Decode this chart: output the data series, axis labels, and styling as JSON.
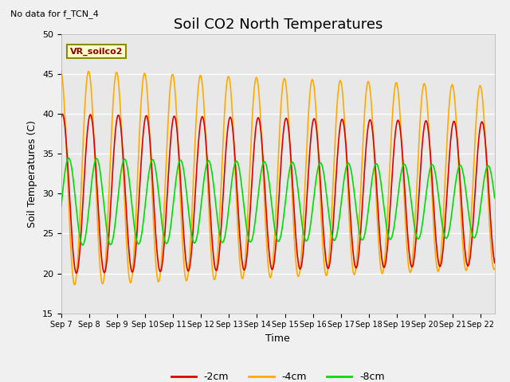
{
  "title": "Soil CO2 North Temperatures",
  "no_data_text": "No data for f_TCN_4",
  "vr_label": "VR_soilco2",
  "xlabel": "Time",
  "ylabel": "Soil Temperatures (C)",
  "ylim": [
    15,
    50
  ],
  "xlim": [
    0,
    15.5
  ],
  "x_tick_labels": [
    "Sep 7",
    "Sep 8",
    "Sep 9",
    "Sep 10",
    "Sep 11",
    "Sep 12",
    "Sep 13",
    "Sep 14",
    "Sep 15",
    "Sep 16",
    "Sep 17",
    "Sep 18",
    "Sep 19",
    "Sep 20",
    "Sep 21",
    "Sep 22"
  ],
  "color_2cm": "#dd0000",
  "color_4cm": "#ffaa00",
  "color_8cm": "#00dd00",
  "background_color": "#e8e8e8",
  "grid_color": "#ffffff",
  "legend_labels": [
    "-2cm",
    "-4cm",
    "-8cm"
  ],
  "title_fontsize": 13,
  "axis_fontsize": 9,
  "tick_fontsize": 8,
  "mean_2": 30.0,
  "amp_2_start": 10.0,
  "amp_2_end": 9.0,
  "phase_2": 1.3,
  "mean_4": 32.0,
  "amp_4_start": 13.5,
  "amp_4_end": 11.5,
  "phase_4": 1.7,
  "mean_8": 29.0,
  "amp_8_start": 5.5,
  "amp_8_end": 4.5,
  "phase_8": -0.1
}
